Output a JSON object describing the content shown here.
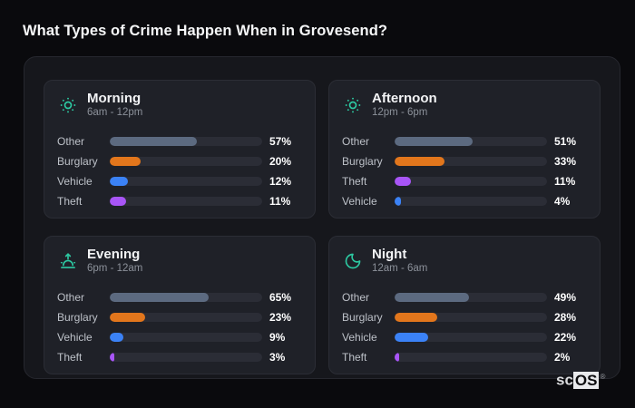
{
  "page": {
    "title": "What Types of Crime Happen When in Grovesend?"
  },
  "brand": {
    "prefix": "sc",
    "suffix": "OS",
    "registered_mark": "®"
  },
  "colors": {
    "accent": "#2dc9a2",
    "other": "#5c6a80",
    "burglary": "#e2761c",
    "vehicle": "#3b82f6",
    "theft": "#a855f7",
    "track": "#2b2d36",
    "card_bg": "#1f2128",
    "container_bg": "#16171c",
    "page_bg": "#0a0a0d"
  },
  "chart_data": [
    {
      "type": "bar",
      "orientation": "horizontal",
      "title": "Morning",
      "subtitle": "6am - 12pm",
      "icon": "sun-icon",
      "categories": [
        "Other",
        "Burglary",
        "Vehicle",
        "Theft"
      ],
      "values": [
        57,
        20,
        12,
        11
      ],
      "value_labels": [
        "57%",
        "20%",
        "12%",
        "11%"
      ],
      "colors": [
        "#5c6a80",
        "#e2761c",
        "#3b82f6",
        "#a855f7"
      ],
      "xlim": [
        0,
        100
      ],
      "unit": "%",
      "grid": false,
      "legend": false
    },
    {
      "type": "bar",
      "orientation": "horizontal",
      "title": "Afternoon",
      "subtitle": "12pm - 6pm",
      "icon": "sun-icon",
      "categories": [
        "Other",
        "Burglary",
        "Theft",
        "Vehicle"
      ],
      "values": [
        51,
        33,
        11,
        4
      ],
      "value_labels": [
        "51%",
        "33%",
        "11%",
        "4%"
      ],
      "colors": [
        "#5c6a80",
        "#e2761c",
        "#a855f7",
        "#3b82f6"
      ],
      "xlim": [
        0,
        100
      ],
      "unit": "%",
      "grid": false,
      "legend": false
    },
    {
      "type": "bar",
      "orientation": "horizontal",
      "title": "Evening",
      "subtitle": "6pm - 12am",
      "icon": "sunset-icon",
      "categories": [
        "Other",
        "Burglary",
        "Vehicle",
        "Theft"
      ],
      "values": [
        65,
        23,
        9,
        3
      ],
      "value_labels": [
        "65%",
        "23%",
        "9%",
        "3%"
      ],
      "colors": [
        "#5c6a80",
        "#e2761c",
        "#3b82f6",
        "#a855f7"
      ],
      "xlim": [
        0,
        100
      ],
      "unit": "%",
      "grid": false,
      "legend": false
    },
    {
      "type": "bar",
      "orientation": "horizontal",
      "title": "Night",
      "subtitle": "12am - 6am",
      "icon": "moon-icon",
      "categories": [
        "Other",
        "Burglary",
        "Vehicle",
        "Theft"
      ],
      "values": [
        49,
        28,
        22,
        2
      ],
      "value_labels": [
        "49%",
        "28%",
        "22%",
        "2%"
      ],
      "colors": [
        "#5c6a80",
        "#e2761c",
        "#3b82f6",
        "#a855f7"
      ],
      "xlim": [
        0,
        100
      ],
      "unit": "%",
      "grid": false,
      "legend": false
    }
  ]
}
